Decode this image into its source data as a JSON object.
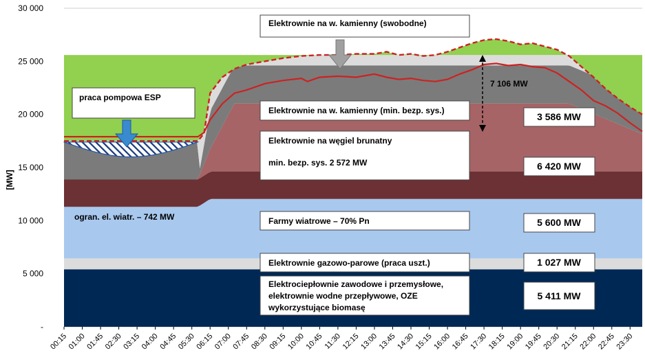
{
  "chart_data": {
    "type": "area",
    "ylabel": "[MW]",
    "ylim": [
      0,
      30000
    ],
    "y_ticks": [
      "-",
      "5 000",
      "10 000",
      "15 000",
      "20 000",
      "25 000",
      "30 000"
    ],
    "y_tick_values": [
      0,
      5000,
      10000,
      15000,
      20000,
      25000,
      30000
    ],
    "x_ticks": [
      "00:15",
      "01:00",
      "01:45",
      "02:30",
      "03:15",
      "04:00",
      "04:45",
      "05:30",
      "06:15",
      "07:00",
      "07:45",
      "08:30",
      "09:15",
      "10:00",
      "10:45",
      "11:30",
      "12:15",
      "13:00",
      "13:45",
      "14:30",
      "15:15",
      "16:00",
      "16:45",
      "17:30",
      "18:15",
      "19:00",
      "19:45",
      "20:30",
      "21:15",
      "22:00",
      "22:45",
      "23:30"
    ],
    "x_hours": [
      0.25,
      1.0,
      1.75,
      2.5,
      3.25,
      4.0,
      4.75,
      5.5,
      6.25,
      7.0,
      7.75,
      8.5,
      9.25,
      10.0,
      10.75,
      11.5,
      12.25,
      13.0,
      13.75,
      14.5,
      15.25,
      16.0,
      16.75,
      17.5,
      18.25,
      19.0,
      19.75,
      20.5,
      21.25,
      22.0,
      22.75,
      23.5
    ],
    "x_range_hours": [
      0.25,
      24.0
    ],
    "grid": true,
    "layers": {
      "chp": {
        "name": "Elektrociepłownie zawodowe i przemysłowe, elektrownie wodne przepływowe, OZE wykorzystujące biomasę",
        "value": 5411,
        "color": "#002855"
      },
      "gas": {
        "name": "Elektrownie gazowo-parowe (praca uszt.)",
        "value": 1027,
        "color": "#dcdcdc"
      },
      "wind": {
        "name": "Farmy wiatrowe – 70% Pn",
        "value": 5600,
        "night_value": 4858,
        "color": "#a8c8ee"
      },
      "lignite_min": {
        "name": "min. bezp. sys. 2 572 MW",
        "value": 2572,
        "color": "#6b3135"
      },
      "lignite": {
        "name": "Elektrownie na węgiel brunatny",
        "value": 6420,
        "night_value": 0,
        "color": "#a66466"
      },
      "hardcoal_min": {
        "name": "Elektrownie na w. kamienny (min. bezp. sys.)",
        "value": 3586,
        "color": "#7b7b7b"
      },
      "hardcoal_free": {
        "name": "Elektrownie na w. kamienny (swobodne)",
        "color": "#dcdcdc"
      },
      "surplus": {
        "color": "#92d050"
      },
      "pump": {
        "name": "praca pompowa ESP",
        "color": "#1a3a7a"
      }
    },
    "demand": {
      "color": "#cc2222",
      "x": [
        0.25,
        5.75,
        6.0,
        6.25,
        6.75,
        7.25,
        7.75,
        8.5,
        9.25,
        10.0,
        10.25,
        10.75,
        11.5,
        12.25,
        13.0,
        13.5,
        14.0,
        14.5,
        15.0,
        15.5,
        16.0,
        16.5,
        17.0,
        17.5,
        18.0,
        18.5,
        19.0,
        19.5,
        20.0,
        20.5,
        21.0,
        21.5,
        22.0,
        22.5,
        23.0,
        23.5,
        24.0
      ],
      "y": [
        17900,
        17900,
        18300,
        19500,
        21000,
        22000,
        22300,
        22900,
        23200,
        23400,
        23100,
        23500,
        23600,
        23500,
        23800,
        23500,
        23300,
        23400,
        23200,
        23100,
        23300,
        23800,
        24200,
        24700,
        24800,
        24600,
        24700,
        24500,
        24400,
        23900,
        23100,
        22300,
        21300,
        20800,
        20100,
        19200,
        18400
      ]
    },
    "supply_limit": {
      "color": "#cc2222",
      "x": [
        0.25,
        5.75,
        6.0,
        6.25,
        6.75,
        7.25,
        7.75,
        8.5,
        9.25,
        10.0,
        10.75,
        11.5,
        12.25,
        13.0,
        13.5,
        14.0,
        14.5,
        15.0,
        15.5,
        16.0,
        16.5,
        17.0,
        17.5,
        18.0,
        18.5,
        19.0,
        19.5,
        20.0,
        20.5,
        21.0,
        21.5,
        22.0,
        22.5,
        23.0,
        23.5,
        24.0
      ],
      "y": [
        17500,
        17500,
        18200,
        22000,
        23500,
        24300,
        24700,
        25000,
        25300,
        25500,
        25600,
        25600,
        25700,
        25700,
        25900,
        25600,
        25700,
        25500,
        25600,
        25900,
        26300,
        26700,
        27000,
        27100,
        26900,
        26600,
        26700,
        26400,
        26100,
        25500,
        24500,
        23500,
        22400,
        21500,
        20700,
        20000
      ]
    },
    "annotations": {
      "pump_label": "praca pompowa ESP",
      "wind_limit": "ogran. el. wiatr. – 742 MW",
      "hardcoal_free": "Elektrownie na w. kamienny (swobodne)",
      "hardcoal_min": "Elektrownie na w. kamienny (min. bezp. sys.)",
      "lignite_title": "Elektrownie na węgiel brunatny",
      "lignite_min": "min. bezp. sys. 2 572 MW",
      "wind": "Farmy wiatrowe – 70% Pn",
      "gas": "Elektrownie gazowo-parowe  (praca uszt.)",
      "chp_line1": "Elektrociepłownie zawodowe i przemysłowe,",
      "chp_line2": "elektrownie wodne przepływowe, OZE",
      "chp_line3": "wykorzystujące biomasę",
      "gap": "7 106 MW",
      "gap_value": 7106
    },
    "value_boxes": [
      "3 586 MW",
      "6 420 MW",
      "5 600 MW",
      "1 027 MW",
      "5 411 MW"
    ]
  }
}
